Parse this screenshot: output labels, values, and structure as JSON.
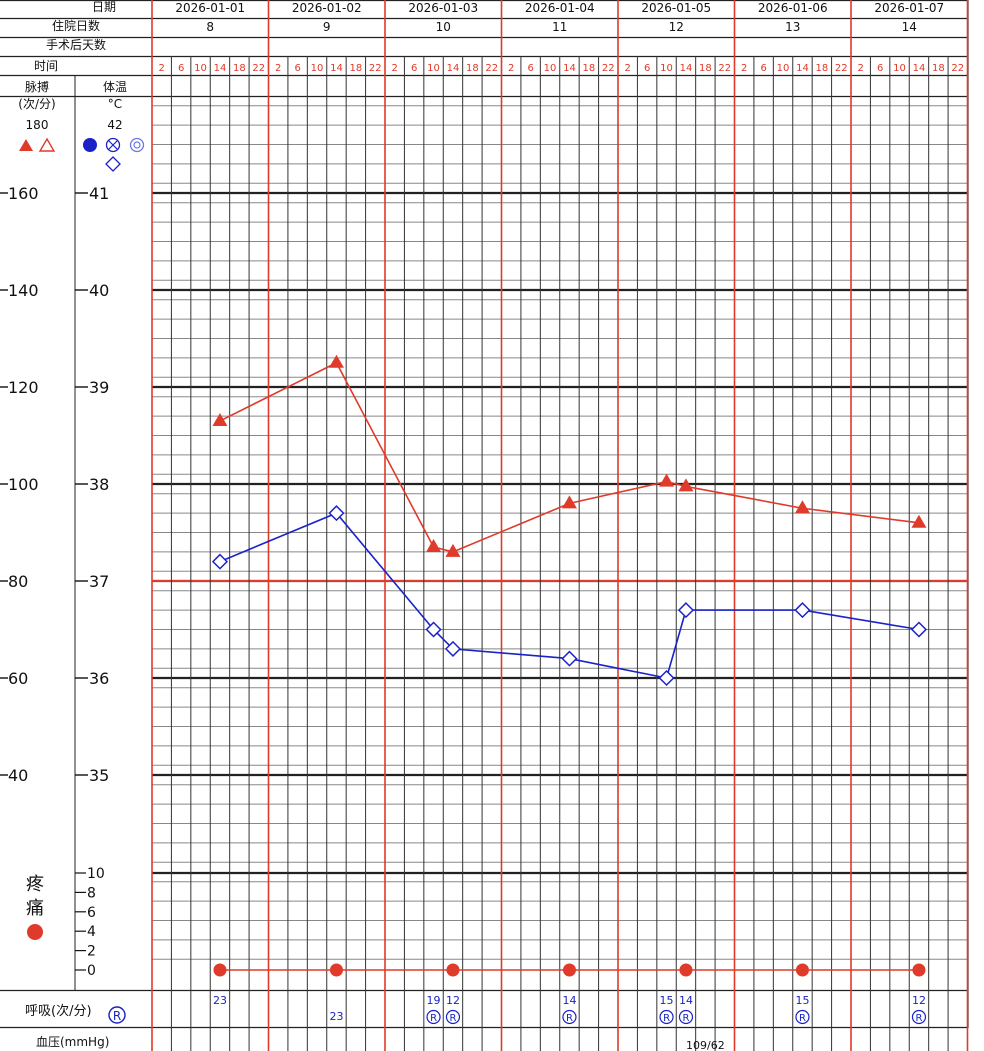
{
  "header": {
    "date_label": "日期",
    "hospital_days_label": "住院日数",
    "post_op_days_label": "手术后天数",
    "time_label": "时间",
    "dates": [
      "2026-01-01",
      "2026-01-02",
      "2026-01-03",
      "2026-01-04",
      "2026-01-05",
      "2026-01-06",
      "2026-01-07"
    ],
    "hospital_days": [
      "8",
      "9",
      "10",
      "11",
      "12",
      "13",
      "14"
    ],
    "time_ticks": [
      "2",
      "6",
      "10",
      "14",
      "18",
      "22"
    ]
  },
  "left_panel": {
    "pulse_label": "脉搏",
    "pulse_unit": "(次/分)",
    "pulse_top": "180",
    "temp_label": "体温",
    "temp_unit": "°C",
    "temp_top": "42",
    "pulse_ticks": [
      "160",
      "140",
      "120",
      "100",
      "80",
      "60",
      "40"
    ],
    "temp_ticks": [
      "41",
      "40",
      "39",
      "38",
      "37",
      "36",
      "35"
    ],
    "pain_label_1": "疼",
    "pain_label_2": "痛",
    "pain_ticks": [
      "10",
      "8",
      "6",
      "4",
      "2",
      "0"
    ],
    "resp_label": "呼吸(次/分)",
    "resp_symbol": "R",
    "bp_label": "血压(mmHg)"
  },
  "colors": {
    "red": "#e03a2a",
    "blue": "#1a22c8",
    "grid": "#555555"
  },
  "chart_data": {
    "type": "line",
    "x_unit": "hour slot",
    "series": [
      {
        "marker": "triangle",
        "color": "#e03a2a",
        "axis": "pulse",
        "points": [
          {
            "day": 0,
            "slot": 3,
            "value": 113
          },
          {
            "day": 1,
            "slot": 3,
            "value": 125
          },
          {
            "day": 2,
            "slot": 2,
            "value": 87
          },
          {
            "day": 2,
            "slot": 3,
            "value": 86
          },
          {
            "day": 3,
            "slot": 3,
            "value": 96
          },
          {
            "day": 4,
            "slot": 2,
            "value": 100.5
          },
          {
            "day": 4,
            "slot": 3,
            "value": 99.5
          },
          {
            "day": 5,
            "slot": 3,
            "value": 95
          },
          {
            "day": 6,
            "slot": 3,
            "value": 92
          }
        ]
      },
      {
        "marker": "diamond",
        "color": "#1a22c8",
        "axis": "temperature",
        "points": [
          {
            "day": 0,
            "slot": 3,
            "value": 37.2
          },
          {
            "day": 1,
            "slot": 3,
            "value": 37.7
          },
          {
            "day": 2,
            "slot": 2,
            "value": 36.5
          },
          {
            "day": 2,
            "slot": 3,
            "value": 36.3
          },
          {
            "day": 3,
            "slot": 3,
            "value": 36.2
          },
          {
            "day": 4,
            "slot": 2,
            "value": 36.0
          },
          {
            "day": 4,
            "slot": 3,
            "value": 36.7
          },
          {
            "day": 5,
            "slot": 3,
            "value": 36.7
          },
          {
            "day": 6,
            "slot": 3,
            "value": 36.5
          }
        ]
      },
      {
        "marker": "circle",
        "color": "#e03a2a",
        "axis": "pain",
        "points": [
          {
            "day": 0,
            "slot": 3,
            "value": 0
          },
          {
            "day": 1,
            "slot": 3,
            "value": 0
          },
          {
            "day": 2,
            "slot": 3,
            "value": 0
          },
          {
            "day": 3,
            "slot": 3,
            "value": 0
          },
          {
            "day": 4,
            "slot": 3,
            "value": 0
          },
          {
            "day": 5,
            "slot": 3,
            "value": 0
          },
          {
            "day": 6,
            "slot": 3,
            "value": 0
          }
        ]
      }
    ],
    "pulse_range": [
      40,
      180
    ],
    "temperature_range": [
      35,
      42
    ],
    "pain_range": [
      0,
      10
    ],
    "respiration": [
      {
        "day": 0,
        "slot": 3,
        "value": "23",
        "r": false,
        "row": 0
      },
      {
        "day": 1,
        "slot": 3,
        "value": "23",
        "r": false,
        "row": 1
      },
      {
        "day": 2,
        "slot": 2,
        "value": "19",
        "r": true,
        "row": 0
      },
      {
        "day": 2,
        "slot": 3,
        "value": "12",
        "r": true,
        "row": 0
      },
      {
        "day": 3,
        "slot": 3,
        "value": "14",
        "r": true,
        "row": 0
      },
      {
        "day": 4,
        "slot": 2,
        "value": "15",
        "r": true,
        "row": 0
      },
      {
        "day": 4,
        "slot": 3,
        "value": "14",
        "r": true,
        "row": 0
      },
      {
        "day": 5,
        "slot": 3,
        "value": "15",
        "r": true,
        "row": 0
      },
      {
        "day": 6,
        "slot": 3,
        "value": "12",
        "r": true,
        "row": 0
      }
    ],
    "blood_pressure": [
      {
        "day": 4,
        "value": "109/62"
      }
    ]
  }
}
